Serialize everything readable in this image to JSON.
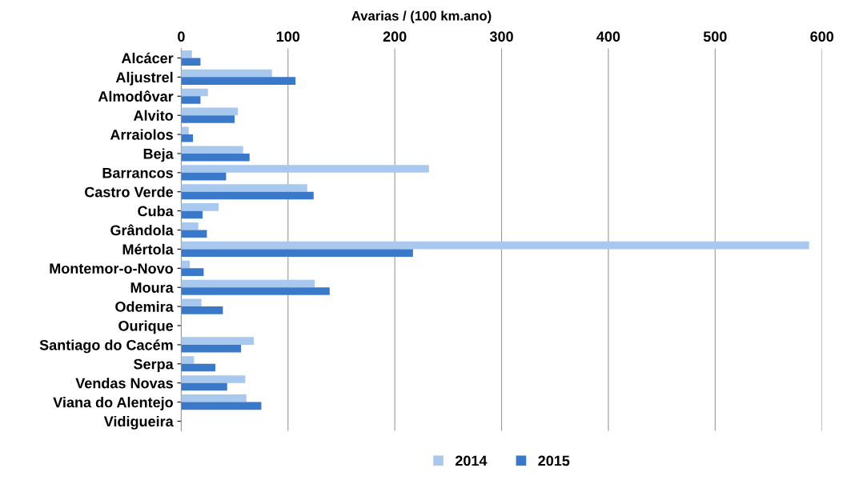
{
  "chart_data": {
    "type": "bar",
    "orientation": "horizontal",
    "title": "Avarias / (100 km.ano)",
    "categories": [
      "Alcácer",
      "Aljustrel",
      "Almodôvar",
      "Alvito",
      "Arraiolos",
      "Beja",
      "Barrancos",
      "Castro Verde",
      "Cuba",
      "Grândola",
      "Mértola",
      "Montemor-o-Novo",
      "Moura",
      "Odemira",
      "Ourique",
      "Santiago do Cacém",
      "Serpa",
      "Vendas Novas",
      "Viana do Alentejo",
      "Vidigueira"
    ],
    "series": [
      {
        "name": "2014",
        "color": "#a9c8ee",
        "values": [
          10,
          85,
          25,
          53,
          7,
          58,
          232,
          118,
          35,
          16,
          588,
          8,
          125,
          19,
          0,
          68,
          12,
          60,
          61,
          0
        ]
      },
      {
        "name": "2015",
        "color": "#3a78c9",
        "values": [
          18,
          107,
          18,
          50,
          11,
          64,
          42,
          124,
          20,
          24,
          217,
          21,
          139,
          39,
          0,
          56,
          32,
          43,
          75,
          0
        ]
      }
    ],
    "xlim": [
      0,
      600
    ],
    "xticks": [
      0,
      100,
      200,
      300,
      400,
      500,
      600
    ],
    "grid": "x",
    "legend": "bottom"
  }
}
